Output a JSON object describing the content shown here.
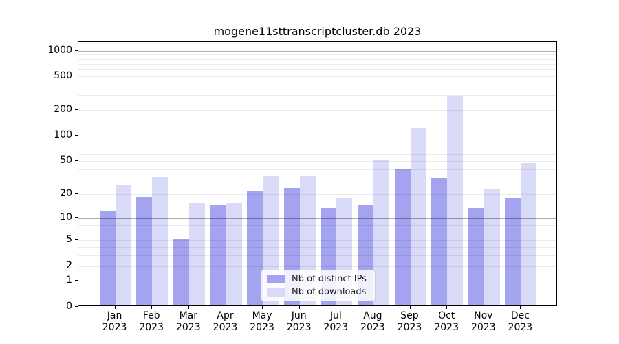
{
  "figure": {
    "title": "mogene11sttranscriptcluster.db 2023"
  },
  "chart_data": {
    "type": "bar",
    "title": "mogene11sttranscriptcluster.db 2023",
    "categories": [
      "Jan",
      "Feb",
      "Mar",
      "Apr",
      "May",
      "Jun",
      "Jul",
      "Aug",
      "Sep",
      "Oct",
      "Nov",
      "Dec"
    ],
    "x_tick_year": "2023",
    "series": [
      {
        "name": "Nb of distinct IPs",
        "color": "#a3a3ef",
        "values": [
          12,
          18,
          5,
          14,
          21,
          23,
          13,
          14,
          39,
          30,
          13,
          17
        ]
      },
      {
        "name": "Nb of downloads",
        "color": "#d9d9f8",
        "values": [
          25,
          31,
          15,
          15,
          32,
          32,
          17,
          49,
          120,
          280,
          22,
          46
        ]
      }
    ],
    "y_scale": "log1p",
    "y_axis_ticks": [
      0,
      1,
      2,
      5,
      10,
      20,
      50,
      100,
      200,
      500,
      1000
    ],
    "y_axis_major_gridlines": [
      1,
      10,
      100,
      1000
    ],
    "ylim": [
      0,
      1260
    ],
    "grid": "on",
    "legend": {
      "position": "lower center",
      "labels": [
        "Nb of distinct IPs",
        "Nb of downloads"
      ]
    }
  }
}
